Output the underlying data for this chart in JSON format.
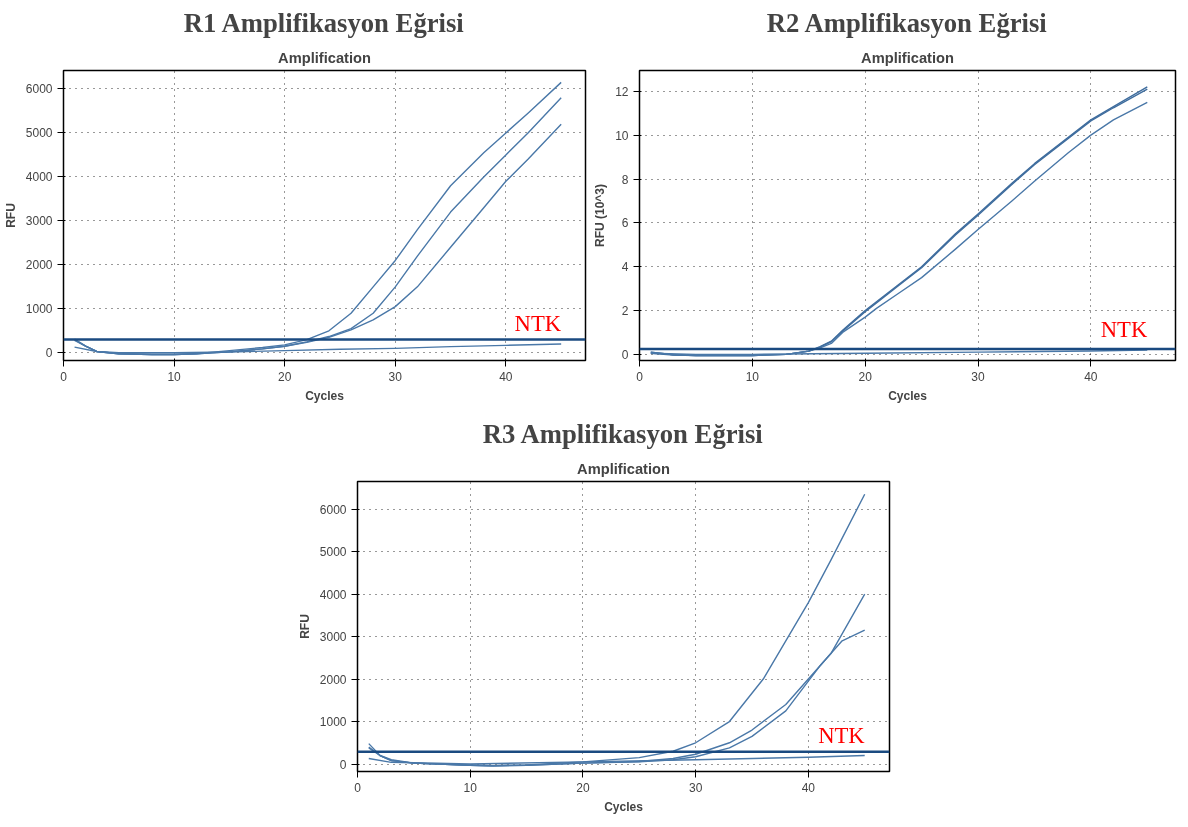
{
  "chart_data": [
    {
      "type": "line",
      "title": "R1 Amplifikasyon Eğrisi",
      "subtitle": "Amplification",
      "xlabel": "Cycles",
      "ylabel": "RFU",
      "xlim": [
        0,
        47.2
      ],
      "ylim": [
        -175,
        6420
      ],
      "xticks": [
        0,
        10,
        20,
        30,
        40
      ],
      "yticks": [
        0,
        1000,
        2000,
        3000,
        4000,
        5000,
        6000
      ],
      "grid": true,
      "series": [
        {
          "color": "#4a78a8",
          "x": [
            1,
            2,
            3,
            5,
            8,
            10,
            12,
            15,
            18,
            20,
            22,
            24,
            26,
            28,
            30,
            32,
            35,
            38,
            40,
            42,
            45
          ],
          "values": [
            300,
            150,
            30,
            -20,
            -40,
            -40,
            -20,
            50,
            120,
            180,
            300,
            500,
            900,
            1500,
            2100,
            2800,
            3800,
            4550,
            5000,
            5450,
            6150
          ]
        },
        {
          "color": "#4a78a8",
          "x": [
            1,
            2,
            3,
            5,
            8,
            10,
            12,
            15,
            18,
            20,
            22,
            24,
            26,
            28,
            30,
            32,
            35,
            38,
            40,
            42,
            45
          ],
          "values": [
            310,
            150,
            30,
            -20,
            -40,
            -40,
            -20,
            20,
            90,
            150,
            250,
            370,
            550,
            900,
            1500,
            2200,
            3200,
            4000,
            4500,
            5000,
            5800
          ]
        },
        {
          "color": "#4a78a8",
          "x": [
            1,
            2,
            3,
            5,
            8,
            10,
            12,
            15,
            18,
            20,
            22,
            24,
            26,
            28,
            30,
            32,
            35,
            38,
            40,
            42,
            45
          ],
          "values": [
            280,
            150,
            30,
            -20,
            -40,
            -40,
            -20,
            20,
            90,
            150,
            240,
            350,
            520,
            750,
            1050,
            1500,
            2400,
            3300,
            3900,
            4400,
            5200
          ]
        },
        {
          "name": "NTK",
          "color": "#4a78a8",
          "x": [
            1,
            3,
            5,
            10,
            15,
            20,
            25,
            30,
            35,
            40,
            45
          ],
          "values": [
            130,
            30,
            0,
            0,
            20,
            50,
            80,
            100,
            140,
            170,
            200
          ]
        }
      ],
      "ref_lines": [
        {
          "axis": "y",
          "value": 300,
          "color": "#1a4a80"
        }
      ]
    },
    {
      "type": "line",
      "title": "R2 Amplifikasyon Eğrisi",
      "subtitle": "Amplification",
      "xlabel": "Cycles",
      "ylabel": "RFU (10^3)",
      "xlim": [
        0,
        47.5
      ],
      "ylim": [
        -0.28,
        12.95
      ],
      "xticks": [
        0,
        10,
        20,
        30,
        40
      ],
      "yticks": [
        0,
        2,
        4,
        6,
        8,
        10,
        12
      ],
      "grid": true,
      "series": [
        {
          "color": "#3f6d9e",
          "x": [
            1,
            3,
            5,
            10,
            13,
            15,
            16,
            17,
            18,
            20,
            21,
            23,
            25,
            28,
            30,
            33,
            35,
            38,
            40,
            42,
            45
          ],
          "values": [
            0.1,
            -0.02,
            -0.05,
            -0.05,
            0.0,
            0.15,
            0.35,
            0.6,
            1.1,
            2.0,
            2.4,
            3.2,
            4.0,
            5.5,
            6.4,
            7.8,
            8.7,
            9.9,
            10.7,
            11.3,
            12.2
          ]
        },
        {
          "color": "#3f6d9e",
          "x": [
            1,
            3,
            5,
            10,
            13,
            15,
            16,
            17,
            18,
            20,
            21,
            23,
            25,
            28,
            30,
            33,
            35,
            38,
            40,
            42,
            45
          ],
          "values": [
            0.05,
            -0.03,
            -0.05,
            -0.05,
            0.0,
            0.15,
            0.33,
            0.58,
            1.05,
            1.95,
            2.35,
            3.15,
            3.95,
            5.45,
            6.35,
            7.75,
            8.65,
            9.85,
            10.65,
            11.25,
            12.1
          ]
        },
        {
          "color": "#4a78a8",
          "x": [
            1,
            3,
            5,
            10,
            13,
            15,
            16,
            17,
            18,
            20,
            21,
            23,
            25,
            28,
            30,
            33,
            35,
            38,
            40,
            42,
            45
          ],
          "values": [
            0.1,
            -0.02,
            -0.05,
            -0.05,
            0.0,
            0.15,
            0.3,
            0.5,
            1.0,
            1.7,
            2.1,
            2.8,
            3.5,
            4.8,
            5.7,
            7.0,
            7.9,
            9.2,
            10.0,
            10.7,
            11.5
          ]
        },
        {
          "name": "NTK",
          "color": "#4a78a8",
          "x": [
            1,
            5,
            10,
            20,
            30,
            40,
            45
          ],
          "values": [
            0.05,
            0.0,
            0.0,
            0.05,
            0.1,
            0.15,
            0.2
          ]
        }
      ],
      "ref_lines": [
        {
          "axis": "y",
          "value": 0.25,
          "color": "#1a4a80"
        }
      ]
    },
    {
      "type": "line",
      "title": "R3 Amplifikasyon Eğrisi",
      "subtitle": "Amplification",
      "xlabel": "Cycles",
      "ylabel": "RFU",
      "xlim": [
        0,
        47.2
      ],
      "ylim": [
        -176,
        6650
      ],
      "xticks": [
        0,
        10,
        20,
        30,
        40
      ],
      "yticks": [
        0,
        1000,
        2000,
        3000,
        4000,
        5000,
        6000
      ],
      "grid": true,
      "series": [
        {
          "color": "#4a78a8",
          "x": [
            1,
            2,
            3,
            5,
            10,
            12,
            15,
            20,
            25,
            28,
            30,
            33,
            36,
            38,
            40,
            42,
            45
          ],
          "values": [
            480,
            200,
            100,
            20,
            -30,
            -40,
            -20,
            50,
            150,
            300,
            500,
            1000,
            2000,
            2900,
            3800,
            4800,
            6350
          ]
        },
        {
          "color": "#4a78a8",
          "x": [
            1,
            2,
            3,
            5,
            10,
            12,
            15,
            20,
            25,
            28,
            30,
            33,
            35,
            38,
            40,
            42,
            45
          ],
          "values": [
            400,
            200,
            80,
            20,
            -30,
            -40,
            -30,
            20,
            60,
            130,
            230,
            500,
            800,
            1400,
            2000,
            2600,
            4000
          ]
        },
        {
          "color": "#4a78a8",
          "x": [
            1,
            2,
            3,
            5,
            10,
            12,
            15,
            20,
            25,
            28,
            30,
            33,
            35,
            38,
            40,
            41,
            43,
            45
          ],
          "values": [
            380,
            200,
            80,
            20,
            -30,
            -40,
            -30,
            20,
            50,
            100,
            170,
            380,
            650,
            1250,
            1950,
            2300,
            2900,
            3150
          ]
        },
        {
          "name": "NTK",
          "color": "#4a78a8",
          "x": [
            1,
            3,
            10,
            20,
            30,
            40,
            45
          ],
          "values": [
            130,
            40,
            0,
            50,
            100,
            160,
            200
          ]
        }
      ],
      "ref_lines": [
        {
          "axis": "y",
          "value": 290,
          "color": "#1a4a80"
        }
      ]
    }
  ]
}
